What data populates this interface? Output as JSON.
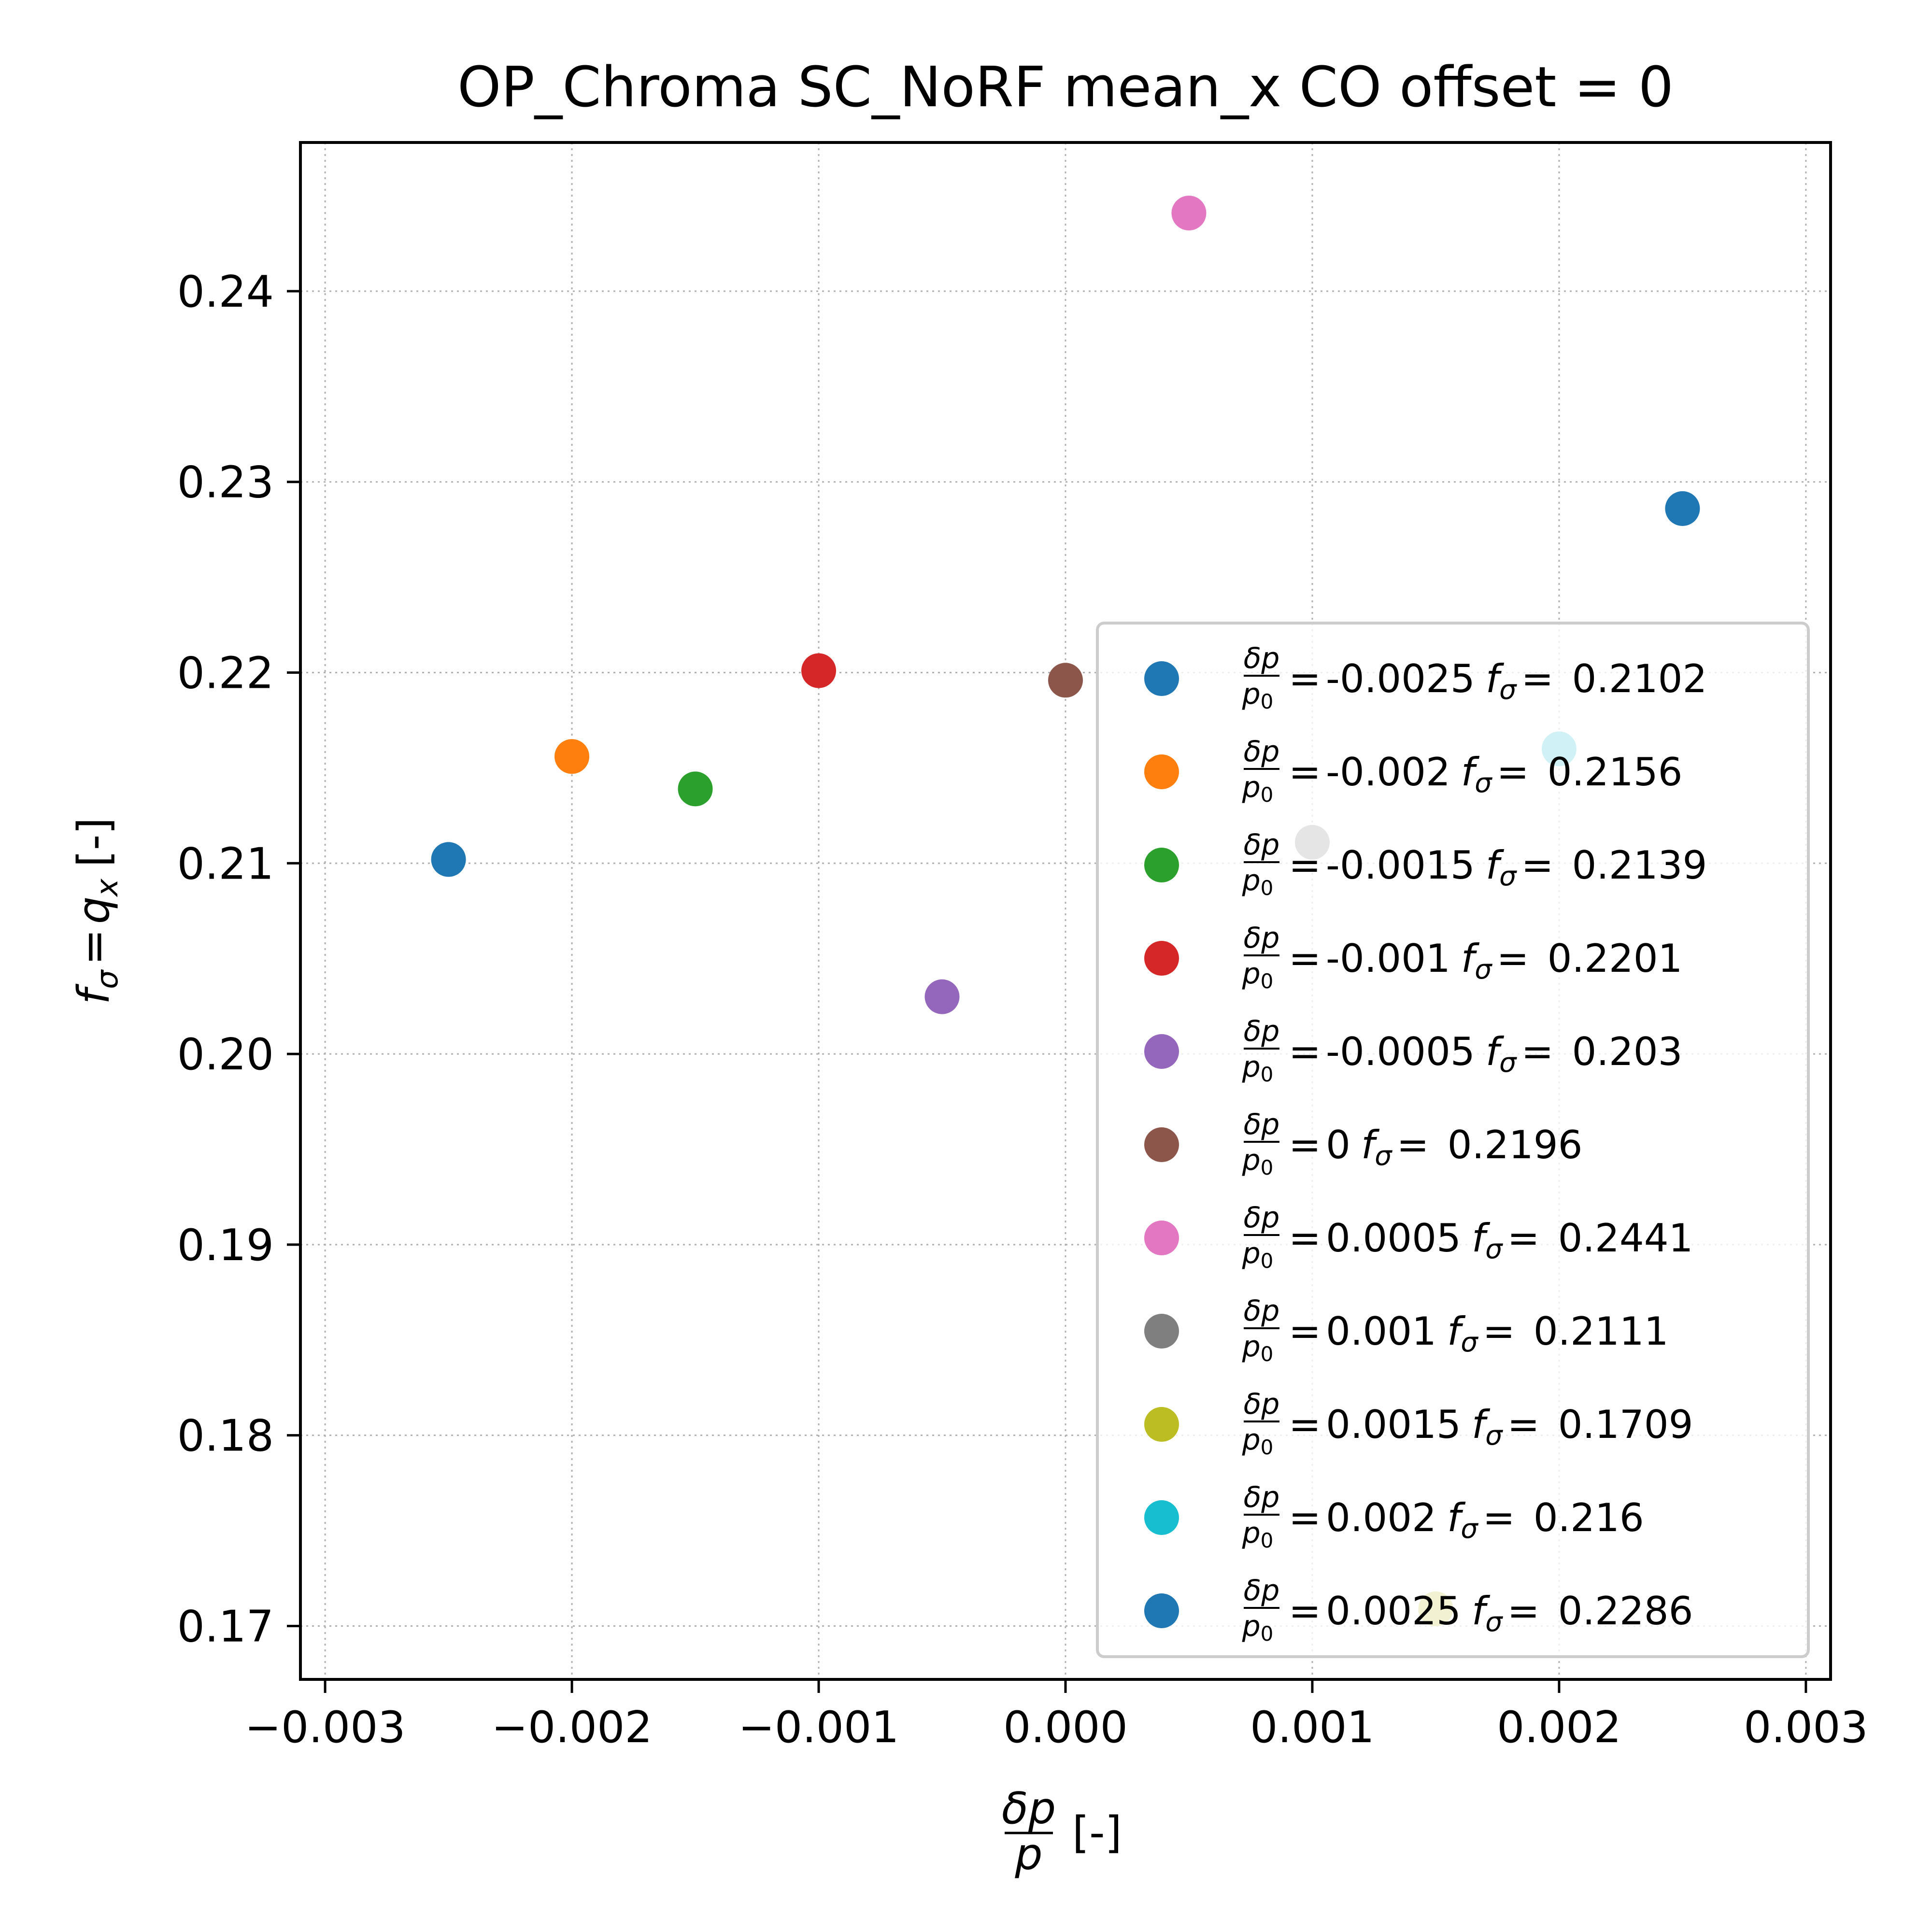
{
  "chart_data": {
    "type": "scatter",
    "title": "OP_Chroma SC_NoRF mean_x CO offset = 0",
    "xlabel": {
      "numerator": "δp",
      "denominator": "p",
      "unit": "[-]"
    },
    "ylabel": {
      "f": "f",
      "sub": "σ",
      "eq": "=",
      "q": "q",
      "qsub": "x",
      "unit": "[-]"
    },
    "xlim": [
      -0.0031,
      0.0031
    ],
    "ylim": [
      0.1672,
      0.2478
    ],
    "xticks": [
      -0.003,
      -0.002,
      -0.001,
      0.0,
      0.001,
      0.002,
      0.003
    ],
    "xtick_labels": [
      "−0.003",
      "−0.002",
      "−0.001",
      "0.000",
      "0.001",
      "0.002",
      "0.003"
    ],
    "yticks": [
      0.17,
      0.18,
      0.19,
      0.2,
      0.21,
      0.22,
      0.23,
      0.24
    ],
    "ytick_labels": [
      "0.17",
      "0.18",
      "0.19",
      "0.20",
      "0.21",
      "0.22",
      "0.23",
      "0.24"
    ],
    "grid": true,
    "legend_position": "lower-right",
    "legend_prefix": {
      "numerator": "δp",
      "denominator": "p",
      "denominator_sub": "0",
      "f": "f",
      "f_sub": "σ",
      "eq": "="
    },
    "series": [
      {
        "dp": "-0.0025",
        "fsig": "0.2102",
        "x": -0.0025,
        "y": 0.2102,
        "color": "#1f77b4"
      },
      {
        "dp": "-0.002",
        "fsig": "0.2156",
        "x": -0.002,
        "y": 0.2156,
        "color": "#ff7f0e"
      },
      {
        "dp": "-0.0015",
        "fsig": "0.2139",
        "x": -0.0015,
        "y": 0.2139,
        "color": "#2ca02c"
      },
      {
        "dp": "-0.001",
        "fsig": "0.2201",
        "x": -0.001,
        "y": 0.2201,
        "color": "#d62728"
      },
      {
        "dp": "-0.0005",
        "fsig": "0.203",
        "x": -0.0005,
        "y": 0.203,
        "color": "#9467bd"
      },
      {
        "dp": "0",
        "fsig": "0.2196",
        "x": 0.0,
        "y": 0.2196,
        "color": "#8c564b"
      },
      {
        "dp": "0.0005",
        "fsig": "0.2441",
        "x": 0.0005,
        "y": 0.2441,
        "color": "#e377c2"
      },
      {
        "dp": "0.001",
        "fsig": "0.2111",
        "x": 0.001,
        "y": 0.2111,
        "color": "#7f7f7f"
      },
      {
        "dp": "0.0015",
        "fsig": "0.1709",
        "x": 0.0015,
        "y": 0.1709,
        "color": "#bcbd22"
      },
      {
        "dp": "0.002",
        "fsig": "0.216",
        "x": 0.002,
        "y": 0.216,
        "color": "#17becf"
      },
      {
        "dp": "0.0025",
        "fsig": "0.2286",
        "x": 0.0025,
        "y": 0.2286,
        "color": "#1f77b4"
      }
    ]
  }
}
